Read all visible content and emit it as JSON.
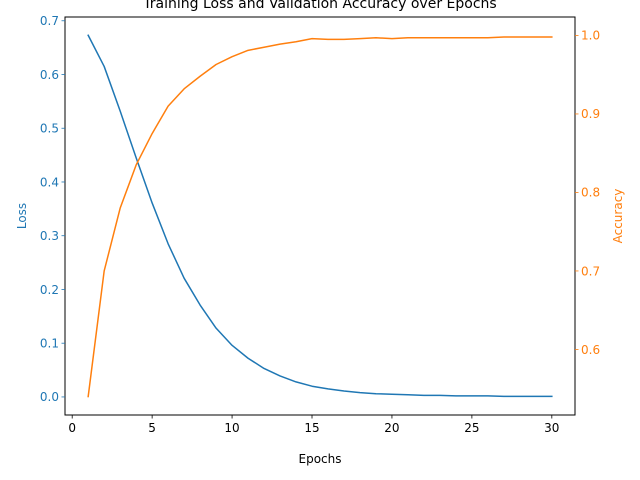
{
  "chart_data": {
    "type": "line",
    "title": "Training Loss and Validation Accuracy over Epochs",
    "xlabel": "Epochs",
    "ylabel_left": "Loss",
    "ylabel_right": "Accuracy",
    "xlim": [
      -0.45,
      31.45
    ],
    "ylim_left": [
      -0.0336,
      0.707
    ],
    "ylim_right": [
      0.5165,
      1.0235
    ],
    "xticks": [
      0,
      5,
      10,
      15,
      20,
      25,
      30
    ],
    "yticks_left": [
      0.0,
      0.1,
      0.2,
      0.3,
      0.4,
      0.5,
      0.6,
      0.7
    ],
    "yticks_right": [
      0.6,
      0.7,
      0.8,
      0.9,
      1.0
    ],
    "grid": false,
    "x": [
      1,
      2,
      3,
      4,
      5,
      6,
      7,
      8,
      9,
      10,
      11,
      12,
      13,
      14,
      15,
      16,
      17,
      18,
      19,
      20,
      21,
      22,
      23,
      24,
      25,
      26,
      27,
      28,
      29,
      30
    ],
    "series": [
      {
        "name": "Loss",
        "axis": "left",
        "color": "#1f77b4",
        "values": [
          0.673,
          0.615,
          0.532,
          0.445,
          0.361,
          0.285,
          0.221,
          0.171,
          0.128,
          0.096,
          0.072,
          0.053,
          0.039,
          0.028,
          0.02,
          0.015,
          0.011,
          0.008,
          0.006,
          0.005,
          0.004,
          0.003,
          0.003,
          0.002,
          0.002,
          0.002,
          0.001,
          0.001,
          0.001,
          0.001
        ]
      },
      {
        "name": "Accuracy",
        "axis": "right",
        "color": "#ff7f0e",
        "values": [
          0.54,
          0.7,
          0.78,
          0.835,
          0.875,
          0.91,
          0.932,
          0.948,
          0.963,
          0.973,
          0.981,
          0.985,
          0.989,
          0.992,
          0.996,
          0.995,
          0.995,
          0.996,
          0.997,
          0.996,
          0.997,
          0.997,
          0.997,
          0.997,
          0.997,
          0.997,
          0.998,
          0.998,
          0.998,
          0.998
        ]
      }
    ]
  }
}
